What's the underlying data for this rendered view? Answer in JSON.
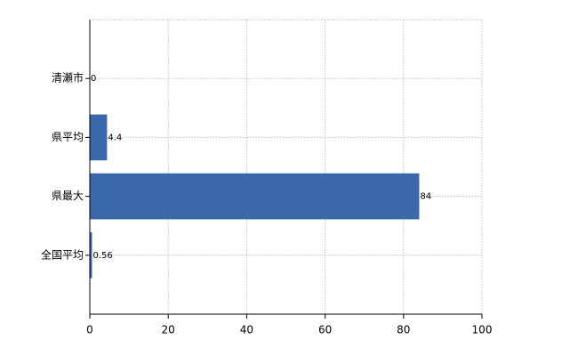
{
  "chart_data": {
    "type": "bar",
    "orientation": "horizontal",
    "categories": [
      "清瀬市",
      "県平均",
      "県最大",
      "全国平均"
    ],
    "values": [
      0,
      4.4,
      84,
      0.56
    ],
    "color": "#3a68a8",
    "xlim": [
      0,
      100
    ],
    "xticks": [
      0,
      20,
      40,
      60,
      80,
      100
    ],
    "grid": true
  }
}
